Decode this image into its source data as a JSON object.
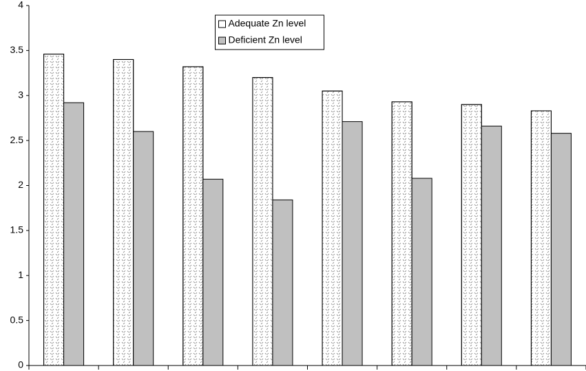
{
  "chart_data": {
    "type": "bar",
    "categories": [
      null,
      null,
      null,
      null,
      null,
      null,
      null,
      null
    ],
    "series": [
      {
        "name": "Adequate Zn level",
        "color": "#ffffff",
        "values": [
          3.46,
          3.4,
          3.32,
          3.2,
          3.05,
          2.93,
          2.9,
          2.83
        ]
      },
      {
        "name": "Deficient Zn level",
        "color": "#c0c0c0",
        "values": [
          2.92,
          2.6,
          2.07,
          1.84,
          2.71,
          2.08,
          2.66,
          2.58
        ]
      }
    ],
    "ylim": [
      0,
      4
    ],
    "yticks": [
      0,
      0.5,
      1,
      1.5,
      2,
      2.5,
      3,
      3.5,
      4
    ],
    "grid": false,
    "legend_position": "top-center"
  }
}
